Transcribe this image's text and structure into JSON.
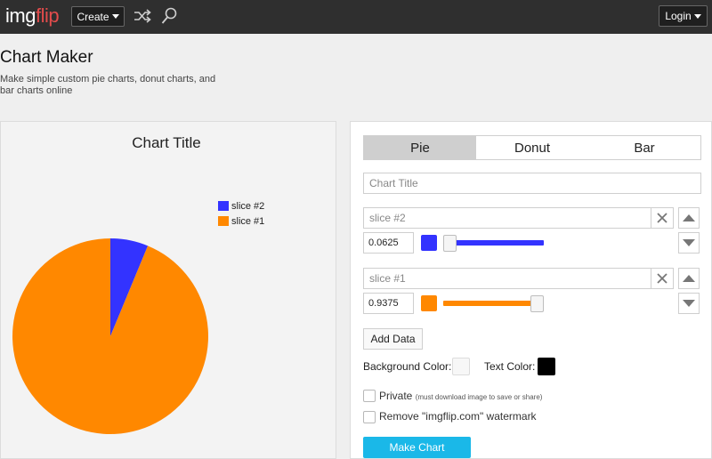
{
  "header": {
    "logo_img": "img",
    "logo_flip": "flip",
    "create_label": "Create",
    "login_label": "Login",
    "icons": [
      "shuffle-icon",
      "search-icon"
    ]
  },
  "page": {
    "title": "Chart Maker",
    "subtitle": "Make simple custom pie charts, donut charts, and bar charts online"
  },
  "preview": {
    "chart_title": "Chart Title"
  },
  "chart_data": {
    "type": "pie",
    "title": "Chart Title",
    "slices": [
      {
        "name": "slice #2",
        "value": 0.0625,
        "color": "#3333ff"
      },
      {
        "name": "slice #1",
        "value": 0.9375,
        "color": "#ff8800"
      }
    ],
    "legend_position": "top-right"
  },
  "controls": {
    "tabs": [
      {
        "label": "Pie",
        "active": true
      },
      {
        "label": "Donut",
        "active": false
      },
      {
        "label": "Bar",
        "active": false
      }
    ],
    "chart_title_placeholder": "Chart Title",
    "rows": [
      {
        "label": "slice #2",
        "value": "0.0625",
        "color": "#3333ff",
        "level": 0.0625
      },
      {
        "label": "slice #1",
        "value": "0.9375",
        "color": "#ff8800",
        "level": 0.9375
      }
    ],
    "add_data_label": "Add Data",
    "background_color_label": "Background Color:",
    "background_color": "#f7f7f7",
    "text_color_label": "Text Color:",
    "text_color": "#000000",
    "private_label": "Private",
    "private_note": "(must download image to save or share)",
    "watermark_label": "Remove \"imgflip.com\" watermark",
    "make_chart_label": "Make Chart"
  }
}
